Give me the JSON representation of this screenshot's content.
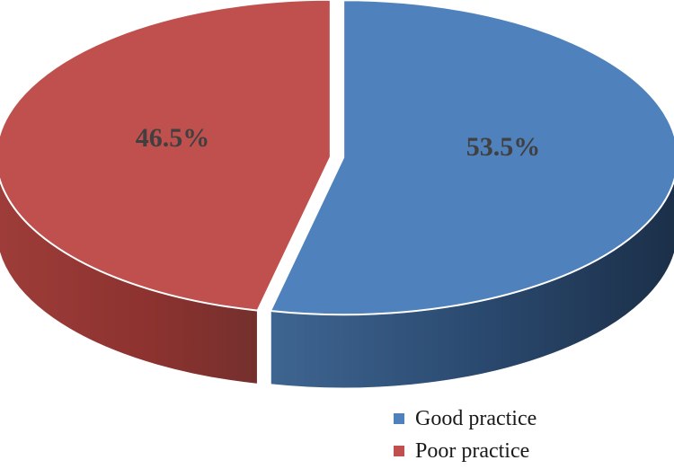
{
  "chart_data": {
    "type": "pie",
    "style": "3d-exploded",
    "categories": [
      "Good practice",
      "Poor practice"
    ],
    "values": [
      53.5,
      46.5
    ],
    "labels": [
      "53.5%",
      "46.5%"
    ],
    "colors": [
      "#4f81bd",
      "#c0504d"
    ],
    "side_colors": [
      "#1f3a5a",
      "#8c2f2c"
    ],
    "legend_position": "bottom-right",
    "title": ""
  }
}
